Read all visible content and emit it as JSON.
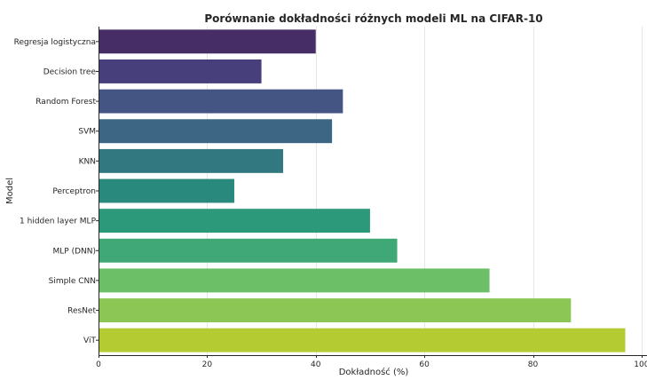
{
  "chart_data": {
    "type": "bar",
    "orientation": "horizontal",
    "title": "Porównanie dokładności różnych modeli ML na CIFAR-10",
    "xlabel": "Dokładność (%)",
    "ylabel": "Model",
    "xlim": [
      0,
      101
    ],
    "xticks": [
      0,
      20,
      40,
      60,
      80,
      100
    ],
    "grid": "vertical",
    "legend": "none",
    "categories": [
      "Regresja logistyczna",
      "Decision tree",
      "Random Forest",
      "SVM",
      "KNN",
      "Perceptron",
      "1 hidden layer MLP",
      "MLP (DNN)",
      "Simple CNN",
      "ResNet",
      "ViT"
    ],
    "values": [
      40,
      30,
      45,
      43,
      34,
      25,
      50,
      55,
      72,
      87,
      97
    ],
    "colors": [
      "#472d65",
      "#463f7c",
      "#445584",
      "#3d6684",
      "#317880",
      "#2a897d",
      "#2c9a7a",
      "#40a876",
      "#6cbe67",
      "#8cc655",
      "#b5cb32"
    ]
  }
}
